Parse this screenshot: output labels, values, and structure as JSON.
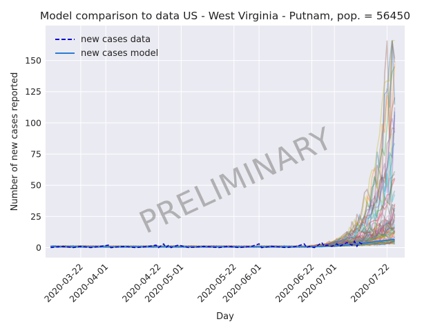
{
  "chart_data": {
    "type": "line",
    "title": "Model comparison to data US - West Virginia - Putnam, pop. = 56450",
    "xlabel": "Day",
    "ylabel": "Number of new cases reported",
    "x_range": [
      "2020-03-08",
      "2020-07-29"
    ],
    "ylim": [
      -8,
      178
    ],
    "grid": true,
    "legend_position": "top-left",
    "watermark": "PRELIMINARY",
    "x_ticks": [
      "2020-03-22",
      "2020-04-01",
      "2020-04-22",
      "2020-05-01",
      "2020-05-22",
      "2020-06-01",
      "2020-06-22",
      "2020-07-01",
      "2020-07-22"
    ],
    "y_ticks": [
      0,
      25,
      50,
      75,
      100,
      125,
      150
    ],
    "series": [
      {
        "name": "new cases data",
        "style": "dashed",
        "color": "#0000cc",
        "x": [
          "2020-03-10",
          "2020-03-15",
          "2020-03-19",
          "2020-03-22",
          "2020-03-26",
          "2020-03-30",
          "2020-04-02",
          "2020-04-03",
          "2020-04-08",
          "2020-04-13",
          "2020-04-18",
          "2020-04-21",
          "2020-04-22",
          "2020-04-24",
          "2020-04-25",
          "2020-04-26",
          "2020-04-27",
          "2020-04-28",
          "2020-04-30",
          "2020-05-04",
          "2020-05-10",
          "2020-05-16",
          "2020-05-20",
          "2020-05-24",
          "2020-05-29",
          "2020-06-01",
          "2020-06-02",
          "2020-06-06",
          "2020-06-12",
          "2020-06-16",
          "2020-06-19",
          "2020-06-20",
          "2020-06-21",
          "2020-06-23",
          "2020-06-26",
          "2020-06-27",
          "2020-06-28",
          "2020-06-30",
          "2020-07-02",
          "2020-07-03",
          "2020-07-04",
          "2020-07-06",
          "2020-07-08",
          "2020-07-09",
          "2020-07-10",
          "2020-07-11",
          "2020-07-12"
        ],
        "y": [
          0,
          1,
          0,
          1,
          0,
          1,
          2,
          0,
          1,
          0,
          1,
          2,
          0,
          3,
          0,
          2,
          0,
          1,
          2,
          0,
          1,
          0,
          1,
          0,
          1,
          3,
          0,
          1,
          0,
          1,
          3,
          0,
          1,
          0,
          4,
          1,
          2,
          1,
          3,
          1,
          2,
          4,
          2,
          5,
          1,
          4,
          3
        ]
      },
      {
        "name": "new cases model",
        "style": "solid",
        "color": "#2a7bd6",
        "x": [
          "2020-03-10",
          "2020-03-20",
          "2020-04-01",
          "2020-04-15",
          "2020-05-01",
          "2020-05-15",
          "2020-06-01",
          "2020-06-15",
          "2020-06-25",
          "2020-07-01",
          "2020-07-06",
          "2020-07-10",
          "2020-07-14",
          "2020-07-18",
          "2020-07-22",
          "2020-07-25"
        ],
        "y": [
          1,
          0.5,
          0.5,
          0.5,
          0.5,
          0.5,
          0.5,
          0.5,
          0.8,
          1.5,
          2.2,
          3,
          4,
          5,
          6,
          6.5
        ]
      }
    ]
  }
}
